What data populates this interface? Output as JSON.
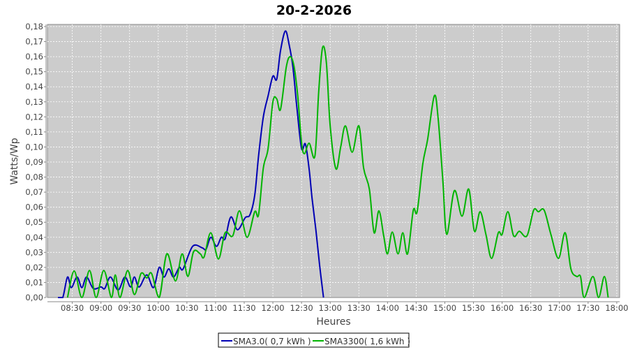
{
  "chart_data": {
    "type": "line",
    "title": "20-2-2026",
    "xlabel": "Heures",
    "ylabel": "Watts/Wp",
    "xlim": [
      "08:04",
      "18:03"
    ],
    "ylim": [
      0,
      0.18
    ],
    "yticks": [
      "0,00",
      "0,01",
      "0,02",
      "0,03",
      "0,04",
      "0,05",
      "0,06",
      "0,07",
      "0,08",
      "0,09",
      "0,10",
      "0,11",
      "0,12",
      "0,13",
      "0,14",
      "0,15",
      "0,16",
      "0,17",
      "0,18"
    ],
    "xticks": [
      "08:30",
      "09:00",
      "09:30",
      "10:00",
      "10:30",
      "11:00",
      "11:30",
      "12:00",
      "12:30",
      "13:00",
      "13:30",
      "14:00",
      "14:30",
      "15:00",
      "15:30",
      "16:00",
      "16:30",
      "17:00",
      "17:30",
      "18:00"
    ],
    "grid": true,
    "background": "#cccccc",
    "legend_position": "bottom",
    "series": [
      {
        "name": "SMA3.0( 0,7 kWh )",
        "color": "#0000b4",
        "points": [
          [
            "08:15",
            0
          ],
          [
            "08:20",
            0
          ],
          [
            "08:25",
            0.0136
          ],
          [
            "08:29",
            0.0066
          ],
          [
            "08:35",
            0.0136
          ],
          [
            "08:40",
            0.0066
          ],
          [
            "08:45",
            0.0136
          ],
          [
            "08:52",
            0.006
          ],
          [
            "09:00",
            0.007
          ],
          [
            "09:04",
            0.006
          ],
          [
            "09:10",
            0.0136
          ],
          [
            "09:18",
            0.005
          ],
          [
            "09:25",
            0.0136
          ],
          [
            "09:31",
            0.007
          ],
          [
            "09:35",
            0.0136
          ],
          [
            "09:40",
            0.007
          ],
          [
            "09:48",
            0.015
          ],
          [
            "09:55",
            0.0066
          ],
          [
            "10:01",
            0.02
          ],
          [
            "10:06",
            0.0136
          ],
          [
            "10:11",
            0.019
          ],
          [
            "10:16",
            0.0136
          ],
          [
            "10:22",
            0.02
          ],
          [
            "10:26",
            0.019
          ],
          [
            "10:36",
            0.034
          ],
          [
            "10:46",
            0.033
          ],
          [
            "10:50",
            0.032
          ],
          [
            "10:55",
            0.04
          ],
          [
            "11:01",
            0.034
          ],
          [
            "11:06",
            0.04
          ],
          [
            "11:10",
            0.039
          ],
          [
            "11:16",
            0.0535
          ],
          [
            "11:23",
            0.045
          ],
          [
            "11:31",
            0.053
          ],
          [
            "11:36",
            0.055
          ],
          [
            "11:41",
            0.068
          ],
          [
            "11:45",
            0.094
          ],
          [
            "11:50",
            0.12
          ],
          [
            "11:55",
            0.134
          ],
          [
            "12:00",
            0.147
          ],
          [
            "12:04",
            0.145
          ],
          [
            "12:08",
            0.164
          ],
          [
            "12:13",
            0.177
          ],
          [
            "12:17",
            0.168
          ],
          [
            "12:21",
            0.153
          ],
          [
            "12:25",
            0.127
          ],
          [
            "12:30",
            0.099
          ],
          [
            "12:34",
            0.102
          ],
          [
            "12:38",
            0.085
          ],
          [
            "12:41",
            0.066
          ],
          [
            "12:45",
            0.045
          ],
          [
            "12:49",
            0.021
          ],
          [
            "12:53",
            0
          ]
        ]
      },
      {
        "name": "SMA3300( 1,6 kWh )",
        "color": "#00b400",
        "points": [
          [
            "08:25",
            0
          ],
          [
            "08:32",
            0.0176
          ],
          [
            "08:40",
            0
          ],
          [
            "08:48",
            0.018
          ],
          [
            "08:55",
            0
          ],
          [
            "09:03",
            0.018
          ],
          [
            "09:11",
            0
          ],
          [
            "09:15",
            0.015
          ],
          [
            "09:20",
            0
          ],
          [
            "09:28",
            0.018
          ],
          [
            "09:35",
            0.002
          ],
          [
            "09:42",
            0.016
          ],
          [
            "09:48",
            0.013
          ],
          [
            "09:53",
            0.016
          ],
          [
            "10:01",
            0
          ],
          [
            "10:09",
            0.029
          ],
          [
            "10:18",
            0.011
          ],
          [
            "10:25",
            0.029
          ],
          [
            "10:31",
            0.014
          ],
          [
            "10:37",
            0.0305
          ],
          [
            "10:44",
            0.029
          ],
          [
            "10:48",
            0.027
          ],
          [
            "10:55",
            0.043
          ],
          [
            "11:03",
            0.0256
          ],
          [
            "11:10",
            0.043
          ],
          [
            "11:18",
            0.041
          ],
          [
            "11:25",
            0.0576
          ],
          [
            "11:33",
            0.04
          ],
          [
            "11:41",
            0.057
          ],
          [
            "11:45",
            0.055
          ],
          [
            "11:50",
            0.086
          ],
          [
            "11:55",
            0.099
          ],
          [
            "12:00",
            0.13
          ],
          [
            "12:04",
            0.132
          ],
          [
            "12:08",
            0.125
          ],
          [
            "12:14",
            0.153
          ],
          [
            "12:18",
            0.16
          ],
          [
            "12:22",
            0.154
          ],
          [
            "12:26",
            0.134
          ],
          [
            "12:30",
            0.103
          ],
          [
            "12:33",
            0.0955
          ],
          [
            "12:38",
            0.1025
          ],
          [
            "12:44",
            0.094
          ],
          [
            "12:48",
            0.137
          ],
          [
            "12:52",
            0.166
          ],
          [
            "12:56",
            0.156
          ],
          [
            "13:00",
            0.114
          ],
          [
            "13:06",
            0.0855
          ],
          [
            "13:11",
            0.1
          ],
          [
            "13:16",
            0.114
          ],
          [
            "13:23",
            0.0965
          ],
          [
            "13:30",
            0.114
          ],
          [
            "13:35",
            0.086
          ],
          [
            "13:41",
            0.072
          ],
          [
            "13:46",
            0.043
          ],
          [
            "13:51",
            0.0576
          ],
          [
            "13:56",
            0.041
          ],
          [
            "14:00",
            0.029
          ],
          [
            "14:05",
            0.0435
          ],
          [
            "14:11",
            0.029
          ],
          [
            "14:16",
            0.043
          ],
          [
            "14:21",
            0.029
          ],
          [
            "14:27",
            0.058
          ],
          [
            "14:31",
            0.057
          ],
          [
            "14:37",
            0.089
          ],
          [
            "14:42",
            0.105
          ],
          [
            "14:49",
            0.134
          ],
          [
            "14:53",
            0.119
          ],
          [
            "14:58",
            0.077
          ],
          [
            "15:02",
            0.042
          ],
          [
            "15:10",
            0.071
          ],
          [
            "15:18",
            0.054
          ],
          [
            "15:25",
            0.072
          ],
          [
            "15:31",
            0.044
          ],
          [
            "15:37",
            0.057
          ],
          [
            "15:43",
            0.042
          ],
          [
            "15:49",
            0.026
          ],
          [
            "15:56",
            0.043
          ],
          [
            "16:00",
            0.042
          ],
          [
            "16:06",
            0.057
          ],
          [
            "16:12",
            0.041
          ],
          [
            "16:18",
            0.044
          ],
          [
            "16:26",
            0.041
          ],
          [
            "16:33",
            0.058
          ],
          [
            "16:38",
            0.057
          ],
          [
            "16:44",
            0.058
          ],
          [
            "16:51",
            0.042
          ],
          [
            "16:59",
            0.026
          ],
          [
            "17:06",
            0.043
          ],
          [
            "17:12",
            0.019
          ],
          [
            "17:18",
            0.014
          ],
          [
            "17:22",
            0.014
          ],
          [
            "17:26",
            0
          ],
          [
            "17:35",
            0.014
          ],
          [
            "17:41",
            0
          ],
          [
            "17:47",
            0.014
          ],
          [
            "17:51",
            0
          ]
        ]
      }
    ]
  }
}
